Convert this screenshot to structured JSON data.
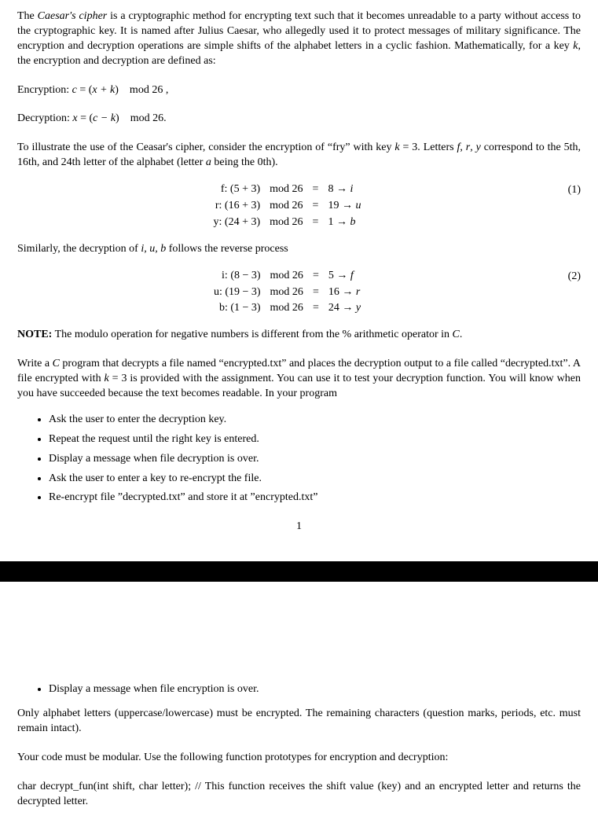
{
  "intro": {
    "p1_a": "The ",
    "p1_term": "Caesar's cipher",
    "p1_b": " is a cryptographic method for encrypting text such that it becomes unreadable to a party without access to the cryptographic key. It is named after Julius Caesar, who allegedly used it to protect messages of military significance. The encryption and decryption operations are simple shifts of the alphabet letters in a cyclic fashion. Mathematically, for a key ",
    "p1_k": "k",
    "p1_c": ", the encryption and decryption are defined as:"
  },
  "enc_line": {
    "label": "Encryption: ",
    "eq_a": "c ",
    "eq_b": "= (",
    "eq_c": "x + k",
    "eq_d": ") mod 26 ,"
  },
  "dec_line": {
    "label": "Decryption: ",
    "eq_a": "x ",
    "eq_b": "= (",
    "eq_c": "c − k",
    "eq_d": ") mod 26."
  },
  "illu": {
    "a": "To illustrate the use of the Ceasar's cipher, consider the encryption of “fry” with key ",
    "k": "k",
    "b": " = 3. Letters ",
    "f": "f",
    "c": ", ",
    "r": "r",
    "d": ", ",
    "y": "y",
    "e": " correspond to the 5th, 16th, and 24th letter of the alphabet (letter ",
    "aa": "a",
    "f2": " being the 0th)."
  },
  "eq1": {
    "num": "(1)",
    "rows": [
      {
        "lhs": "f: (5 + 3)",
        "mod": "mod 26",
        "eq": "=",
        "rhs": "8 → i",
        "rhs_i": true
      },
      {
        "lhs": "r: (16 + 3)",
        "mod": "mod 26",
        "eq": "=",
        "rhs": "19 → u",
        "rhs_i": true
      },
      {
        "lhs": "y: (24 + 3)",
        "mod": "mod 26",
        "eq": "=",
        "rhs": "1 → b",
        "rhs_i": true
      }
    ]
  },
  "sim": {
    "a": "Similarly, the decryption of ",
    "iub": "i, u, b",
    "b": " follows the reverse process"
  },
  "eq2": {
    "num": "(2)",
    "rows": [
      {
        "lhs": "i: (8 − 3)",
        "mod": "mod 26",
        "eq": "=",
        "rhs": "5 → f",
        "rhs_i": true
      },
      {
        "lhs": "u: (19 − 3)",
        "mod": "mod 26",
        "eq": "=",
        "rhs": "16 → r",
        "rhs_i": true
      },
      {
        "lhs": "b: (1 − 3)",
        "mod": "mod 26",
        "eq": "=",
        "rhs": "24 → y",
        "rhs_i": true
      }
    ]
  },
  "note": {
    "label": "NOTE:",
    "text_a": " The modulo operation for negative numbers is different from the % arithmetic operator in ",
    "C": "C",
    "text_b": "."
  },
  "task": {
    "a": "Write a ",
    "C": "C",
    "b": " program that decrypts a file named “encrypted.txt” and places the decryption output to a file called “decrypted.txt”. A file encrypted with ",
    "k": "k",
    "c": " = 3 is provided with the assignment. You can use it to test your decryption function. You will know when you have succeeded because the text becomes readable. In your program"
  },
  "bullets1": [
    "Ask the user to enter the decryption key.",
    "Repeat the request until the right key is entered.",
    "Display a message when file decryption is over.",
    "Ask the user to enter a key to re-encrypt the file.",
    "Re-encrypt file ”decrypted.txt” and store it at ”encrypted.txt”"
  ],
  "page_number": "1",
  "bullets2": [
    "Display a message when file encryption is over."
  ],
  "only": "Only alphabet letters (uppercase/lowercase) must be encrypted. The remaining characters (question marks, periods, etc. must remain intact).",
  "modular": "Your code must be modular. Use the following function prototypes for encryption and decryption:",
  "proto": "char decrypt_fun(int shift, char letter); // This function receives the shift value (key) and an encrypted letter and returns the decrypted letter."
}
